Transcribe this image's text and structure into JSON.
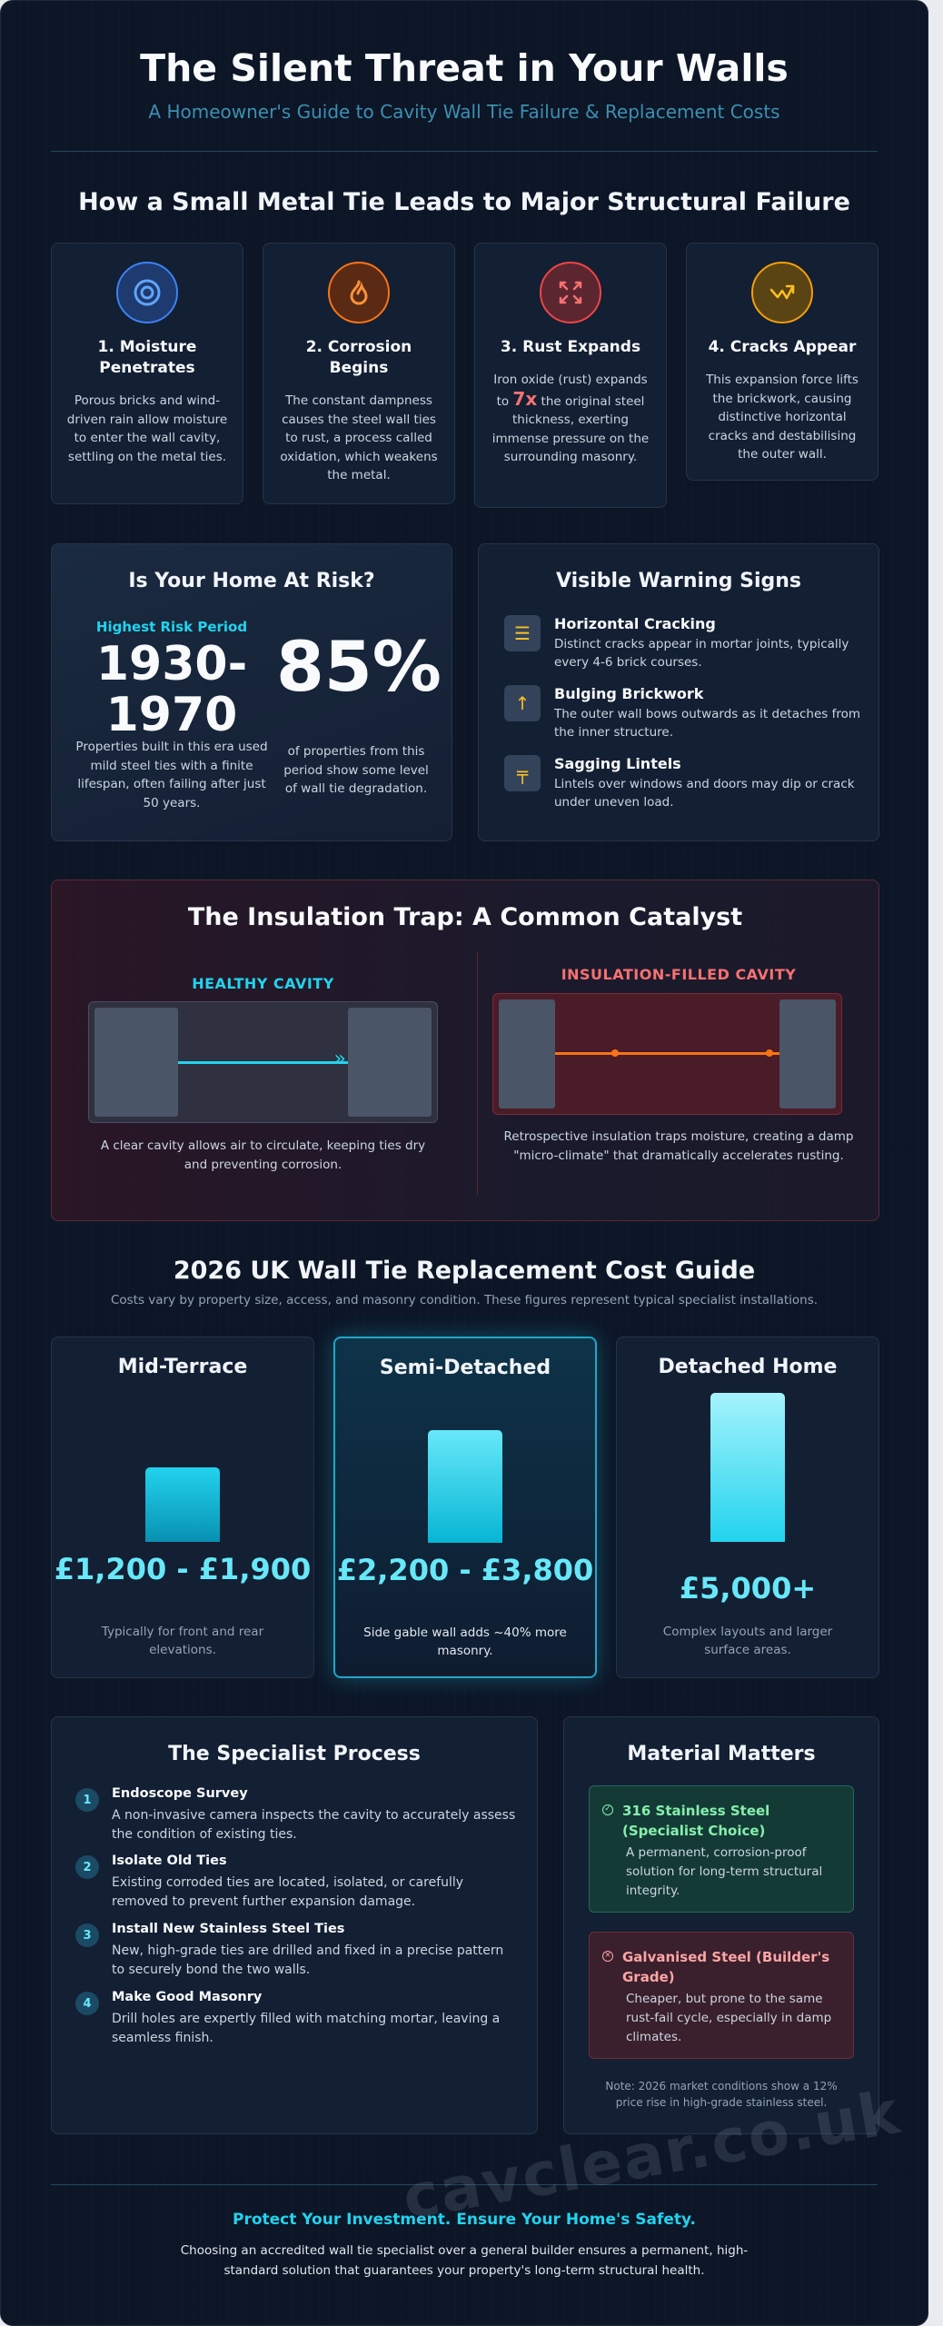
{
  "hero": {
    "title": "The Silent Threat in Your Walls",
    "subtitle": "A Homeowner's Guide to Cavity Wall Tie Failure & Replacement Costs"
  },
  "failure": {
    "title": "How a Small Metal Tie Leads to Major Structural Failure",
    "steps": [
      {
        "title": "1. Moisture Penetrates",
        "text": "Porous bricks and wind-driven rain allow moisture to enter the wall cavity, settling on the metal ties.",
        "icon": "target-icon",
        "color": "#3b82f6"
      },
      {
        "title": "2. Corrosion Begins",
        "text": "The constant dampness causes the steel wall ties to rust, a process called oxidation, which weakens the metal.",
        "icon": "fire-icon",
        "color": "#f97316"
      },
      {
        "title": "3. Rust Expands",
        "text_a": "Iron oxide (rust) expands to",
        "text_hl": "7x",
        "text_b": "the original steel thickness, exerting immense pressure on the surrounding masonry.",
        "icon": "expand-icon",
        "color": "#f87171"
      },
      {
        "title": "4. Cracks Appear",
        "text": "This expansion force lifts the brickwork, causing distinctive horizontal cracks and destabilising the outer wall.",
        "icon": "crack-icon",
        "color": "#fbbf24"
      }
    ]
  },
  "risk": {
    "title": "Is Your Home At Risk?",
    "period_label": "Highest Risk Period",
    "period": "1930-1970",
    "period_text": "Properties built in this era used mild steel ties with a finite lifespan, often failing after just 50 years.",
    "percent": "85%",
    "percent_text": "of properties from this period show some level of wall tie degradation."
  },
  "warnings": {
    "title": "Visible Warning Signs",
    "items": [
      {
        "title": "Horizontal Cracking",
        "text": "Distinct cracks appear in mortar joints, typically every 4-6 brick courses.",
        "icon": "lines-icon",
        "glyph": "☰"
      },
      {
        "title": "Bulging Brickwork",
        "text": "The outer wall bows outwards as it detaches from the inner structure.",
        "icon": "arrow-up-icon",
        "glyph": "↑"
      },
      {
        "title": "Sagging Lintels",
        "text": "Lintels over windows and doors may dip or crack under uneven load.",
        "icon": "lintel-icon",
        "glyph": "╤"
      }
    ]
  },
  "insulation": {
    "title": "The Insulation Trap: A Common Catalyst",
    "healthy_label": "HEALTHY CAVITY",
    "healthy_text": "A clear cavity allows air to circulate, keeping ties dry and preventing corrosion.",
    "filled_label": "INSULATION-FILLED CAVITY",
    "filled_text": "Retrospective insulation traps moisture, creating a damp \"micro-climate\" that dramatically accelerates rusting.",
    "healthy_color": "#22d3ee",
    "filled_color": "#f87171"
  },
  "costs": {
    "title": "2026 UK Wall Tie Replacement Cost Guide",
    "subtitle": "Costs vary by property size, access, and masonry condition. These figures represent typical specialist installations.",
    "tiers": [
      {
        "title": "Mid-Terrace",
        "price": "£1,200 - £1,900",
        "note": "Typically for front and rear elevations.",
        "level": 0.45
      },
      {
        "title": "Semi-Detached",
        "price": "£2,200 - £3,800",
        "note": "Side gable wall adds ~40% more masonry.",
        "level": 0.68
      },
      {
        "title": "Detached Home",
        "price": "£5,000+",
        "note": "Complex layouts and larger surface areas.",
        "level": 0.9
      }
    ]
  },
  "process": {
    "title": "The Specialist Process",
    "steps": [
      {
        "num": "1",
        "title": "Endoscope Survey",
        "text": "A non-invasive camera inspects the cavity to accurately assess the condition of existing ties."
      },
      {
        "num": "2",
        "title": "Isolate Old Ties",
        "text": "Existing corroded ties are located, isolated, or carefully removed to prevent further expansion damage."
      },
      {
        "num": "3",
        "title": "Install New Stainless Steel Ties",
        "text": "New, high-grade ties are drilled and fixed in a precise pattern to securely bond the two walls."
      },
      {
        "num": "4",
        "title": "Make Good Masonry",
        "text": "Drill holes are expertly filled with matching mortar, leaving a seamless finish."
      }
    ]
  },
  "material": {
    "title": "Material Matters",
    "good_title": "316 Stainless Steel (Specialist Choice)",
    "good_text": "A permanent, corrosion-proof solution for long-term structural integrity.",
    "bad_title": "Galvanised Steel (Builder's Grade)",
    "bad_text": "Cheaper, but prone to the same rust-fail cycle, especially in damp climates.",
    "note": "Note: 2026 market conditions show a 12% price rise in high-grade stainless steel."
  },
  "footer": {
    "title": "Protect Your Investment. Ensure Your Home's Safety.",
    "text": "Choosing an accredited wall tie specialist over a general builder ensures a permanent, high-standard solution that guarantees your property's long-term structural health.",
    "watermark": "cavclear.co.uk"
  }
}
